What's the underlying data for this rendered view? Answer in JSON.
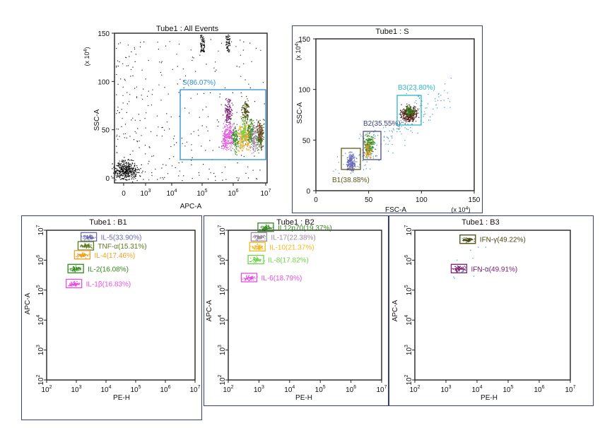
{
  "colors": {
    "frame": "#3b3f78",
    "blue_gate": "#2a8fd8",
    "purple": "#7a1d6e",
    "olive": "#5c5a1a",
    "brown": "#7a3b2a",
    "magenta": "#e64fe0",
    "orange": "#f0a020",
    "green": "#2f8a1a",
    "lime": "#6fd24a",
    "gray_purple": "#9a8aa0",
    "slate_blue": "#6a6ab8",
    "cyan": "#2ab8c8"
  },
  "chart_data": [
    {
      "id": "p1",
      "type": "scatter",
      "title": "Tube1 : All Events",
      "xlabel": "APC-A",
      "ylabel": "SSC-A",
      "ylabel_unit": "(x 10",
      "ylabel_exp": "4",
      "ylabel_close": ")",
      "yticks": [
        "0",
        "50",
        "100",
        "150"
      ],
      "xticks": [
        {
          "base": "0",
          "exp": ""
        },
        {
          "base": "10",
          "exp": "3"
        },
        {
          "base": "10",
          "exp": "4"
        },
        {
          "base": "10",
          "exp": "5"
        },
        {
          "base": "10",
          "exp": "6"
        },
        {
          "base": "10",
          "exp": "7"
        }
      ],
      "gates": [
        {
          "label": "S(86.07%)",
          "color": "#2a8fd8"
        }
      ],
      "clusters": [
        {
          "x": 0.56,
          "y": 0.7,
          "color": "#7a1d6e"
        },
        {
          "x": 0.76,
          "y": 0.7,
          "color": "#4a4a10"
        },
        {
          "x": 0.52,
          "y": 0.3,
          "color": "#e64fe0"
        },
        {
          "x": 0.58,
          "y": 0.36,
          "color": "#e64fe0"
        },
        {
          "x": 0.64,
          "y": 0.3,
          "color": "#2f8a1a"
        },
        {
          "x": 0.71,
          "y": 0.3,
          "color": "#f0a020"
        },
        {
          "x": 0.74,
          "y": 0.4,
          "color": "#6fd24a"
        },
        {
          "x": 0.79,
          "y": 0.33,
          "color": "#f0a020"
        },
        {
          "x": 0.82,
          "y": 0.4,
          "color": "#2f8a1a"
        },
        {
          "x": 0.86,
          "y": 0.3,
          "color": "#9a8aa0"
        },
        {
          "x": 0.93,
          "y": 0.33,
          "color": "#2f8a1a"
        },
        {
          "x": 0.93,
          "y": 0.4,
          "color": "#7a3b2a"
        }
      ]
    },
    {
      "id": "p2",
      "type": "scatter",
      "title": "Tube1 : S",
      "xlabel": "FSC-A",
      "ylabel": "SSC-A",
      "unit_open": "(x 10",
      "unit_exp": "4",
      "unit_close": ")",
      "xticks": [
        "0",
        "50",
        "100",
        "150"
      ],
      "yticks": [
        "0",
        "50",
        "100",
        "150"
      ],
      "xlim": [
        0,
        150
      ],
      "ylim": [
        0,
        150
      ],
      "gates": [
        {
          "label": "B1(38.88%)",
          "color": "#5c5a1a",
          "x": 32,
          "y": 28
        },
        {
          "label": "B2(35.55%)",
          "color": "#4a4a8a",
          "x": 50,
          "y": 47
        },
        {
          "label": "B3(23.80%)",
          "color": "#2ab8c8",
          "x": 88,
          "y": 78
        }
      ]
    },
    {
      "id": "p3",
      "type": "scatter",
      "title": "Tube1 : B1",
      "xlabel": "PE-H",
      "ylabel": "APC-A",
      "ticks": [
        {
          "base": "10",
          "exp": "2"
        },
        {
          "base": "10",
          "exp": "3"
        },
        {
          "base": "10",
          "exp": "4"
        },
        {
          "base": "10",
          "exp": "5"
        },
        {
          "base": "10",
          "exp": "6"
        },
        {
          "base": "10",
          "exp": "7"
        }
      ],
      "populations": [
        {
          "label": "IL-5(33.90%)",
          "x": 3.42,
          "y": 6.78,
          "color": "#6a6ab8"
        },
        {
          "label": "TNF-α(15.31%)",
          "x": 3.32,
          "y": 6.48,
          "color": "#5c7a1a"
        },
        {
          "label": "IL-4(17.46%)",
          "x": 3.2,
          "y": 6.18,
          "color": "#f0a020"
        },
        {
          "label": "IL-2(16.08%)",
          "x": 2.98,
          "y": 5.72,
          "color": "#2f8a1a"
        },
        {
          "label": "IL-1β(16.83%)",
          "x": 2.92,
          "y": 5.22,
          "color": "#e64fe0"
        }
      ]
    },
    {
      "id": "p4",
      "type": "scatter",
      "title": "Tube1 : B2",
      "xlabel": "PE-H",
      "ylabel": "APC-A",
      "ticks": [
        {
          "base": "10",
          "exp": "2"
        },
        {
          "base": "10",
          "exp": "3"
        },
        {
          "base": "10",
          "exp": "4"
        },
        {
          "base": "10",
          "exp": "5"
        },
        {
          "base": "10",
          "exp": "6"
        },
        {
          "base": "10",
          "exp": "7"
        }
      ],
      "populations": [
        {
          "label": "IL12p70(19.37%)",
          "x": 3.22,
          "y": 7.1,
          "color": "#2f8a1a"
        },
        {
          "label": "IL-17(22.38%)",
          "x": 3.0,
          "y": 6.78,
          "color": "#9a8aa0"
        },
        {
          "label": "IL-10(21.37%)",
          "x": 2.95,
          "y": 6.45,
          "color": "#f0b820"
        },
        {
          "label": "IL-8(17.82%)",
          "x": 2.9,
          "y": 6.02,
          "color": "#6fd24a"
        },
        {
          "label": "IL-6(18.79%)",
          "x": 2.68,
          "y": 5.42,
          "color": "#e64fe0"
        }
      ]
    },
    {
      "id": "p5",
      "type": "scatter",
      "title": "Tube1 : B3",
      "xlabel": "PE-H",
      "ylabel": "APC-A",
      "ticks": [
        {
          "base": "10",
          "exp": "2"
        },
        {
          "base": "10",
          "exp": "3"
        },
        {
          "base": "10",
          "exp": "4"
        },
        {
          "base": "10",
          "exp": "5"
        },
        {
          "base": "10",
          "exp": "6"
        },
        {
          "base": "10",
          "exp": "7"
        }
      ],
      "populations": [
        {
          "label": "IFN-γ(49.22%)",
          "x": 3.7,
          "y": 6.7,
          "color": "#4a4a10"
        },
        {
          "label": "IFN-α(49.91%)",
          "x": 3.42,
          "y": 5.72,
          "color": "#7a1d6e"
        }
      ]
    }
  ]
}
